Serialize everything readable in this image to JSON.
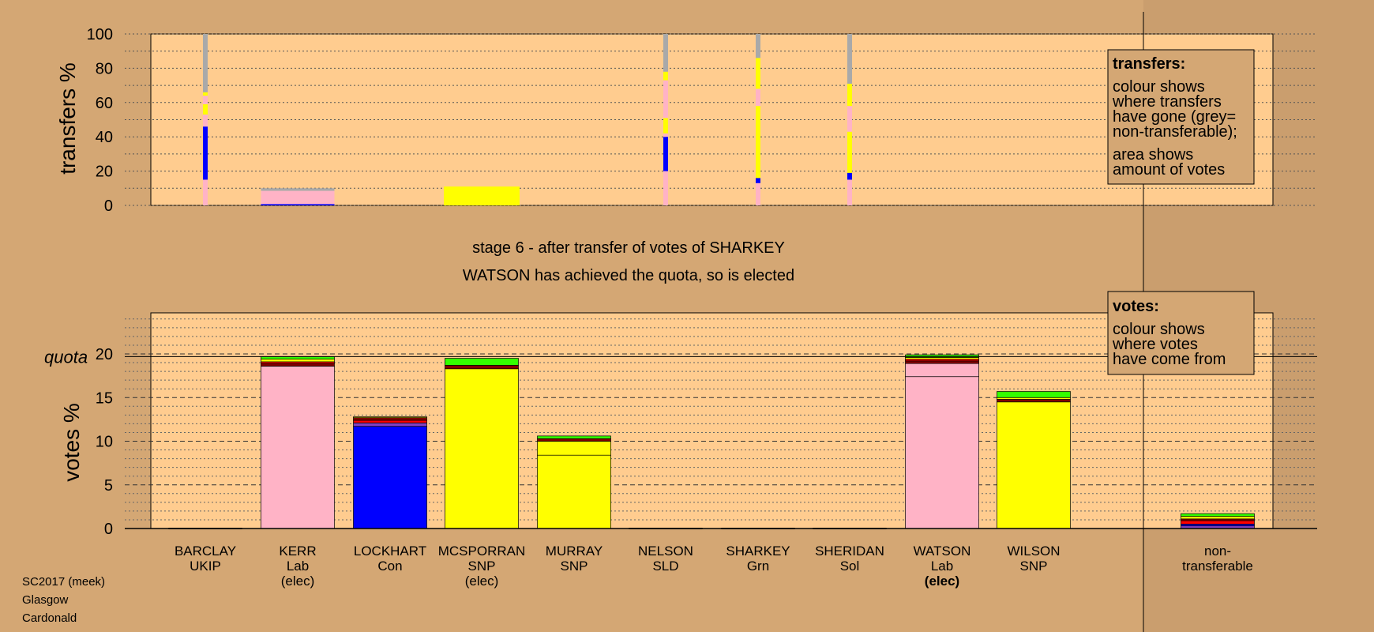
{
  "colors": {
    "background": "#d4a774",
    "plot_bg": "#ffcc8f",
    "shade": "#b89065",
    "pink": "#ffb3c6",
    "blue": "#0000ff",
    "yellow": "#ffff00",
    "green": "#33ff00",
    "red": "#ff0000",
    "maroon": "#800000",
    "purple": "#8040c0",
    "grey": "#a9a9a9"
  },
  "stage_title": "stage 6 - after transfer of votes of SHARKEY",
  "status_line": "WATSON has achieved the quota, so is elected",
  "footer": [
    "SC2017 (meek)",
    "Glasgow",
    "Cardonald"
  ],
  "legend_transfers": {
    "heading": "transfers:",
    "lines": [
      "colour shows",
      "where transfers",
      "have gone (grey=",
      "non-transferable);",
      "area shows",
      "amount of votes"
    ]
  },
  "legend_votes": {
    "heading": "votes:",
    "lines": [
      "colour shows",
      "where votes",
      "have come from"
    ]
  },
  "chart_data": [
    {
      "type": "bar",
      "ylabel": "transfers %",
      "ylim": [
        0,
        100
      ],
      "yticks": [
        "0",
        "20",
        "40",
        "60",
        "80",
        "100"
      ],
      "transfers": [
        {
          "column": "BARCLAY",
          "segments": [
            {
              "color": "pink",
              "from": 0,
              "to": 15
            },
            {
              "color": "blue",
              "from": 15,
              "to": 46
            },
            {
              "color": "pink",
              "from": 46,
              "to": 53
            },
            {
              "color": "yellow",
              "from": 53,
              "to": 59
            },
            {
              "color": "pink",
              "from": 59,
              "to": 64
            },
            {
              "color": "yellow",
              "from": 64,
              "to": 66
            },
            {
              "color": "grey",
              "from": 66,
              "to": 100
            }
          ]
        },
        {
          "column": "KERR",
          "segments": [
            {
              "color": "blue",
              "from": 0,
              "to": 0.8
            },
            {
              "color": "pink",
              "from": 0.8,
              "to": 8.5
            },
            {
              "color": "grey",
              "from": 8.5,
              "to": 10
            }
          ]
        },
        {
          "column": "MCSPORRAN",
          "segments": [
            {
              "color": "yellow",
              "from": 0,
              "to": 11
            }
          ]
        },
        {
          "column": "NELSON",
          "segments": [
            {
              "color": "pink",
              "from": 0,
              "to": 20
            },
            {
              "color": "blue",
              "from": 20,
              "to": 40
            },
            {
              "color": "pink",
              "from": 40,
              "to": 42
            },
            {
              "color": "yellow",
              "from": 42,
              "to": 51
            },
            {
              "color": "pink",
              "from": 51,
              "to": 73
            },
            {
              "color": "yellow",
              "from": 73,
              "to": 78
            },
            {
              "color": "grey",
              "from": 78,
              "to": 100
            }
          ]
        },
        {
          "column": "SHARKEY",
          "segments": [
            {
              "color": "pink",
              "from": 0,
              "to": 13
            },
            {
              "color": "blue",
              "from": 13,
              "to": 16
            },
            {
              "color": "yellow",
              "from": 16,
              "to": 58
            },
            {
              "color": "pink",
              "from": 58,
              "to": 68
            },
            {
              "color": "yellow",
              "from": 68,
              "to": 86
            },
            {
              "color": "grey",
              "from": 86,
              "to": 100
            }
          ]
        },
        {
          "column": "SHERIDAN",
          "segments": [
            {
              "color": "pink",
              "from": 0,
              "to": 15
            },
            {
              "color": "blue",
              "from": 15,
              "to": 19
            },
            {
              "color": "yellow",
              "from": 19,
              "to": 43
            },
            {
              "color": "pink",
              "from": 43,
              "to": 58
            },
            {
              "color": "yellow",
              "from": 58,
              "to": 71
            },
            {
              "color": "grey",
              "from": 71,
              "to": 100
            }
          ]
        }
      ]
    },
    {
      "type": "bar",
      "ylabel": "votes %",
      "ylim": [
        0,
        25
      ],
      "yticks": [
        "0",
        "5",
        "10",
        "15",
        "20"
      ],
      "quota_label": "quota",
      "quota": 19.7,
      "categories": [
        {
          "name": "BARCLAY",
          "party": "UKIP",
          "status": ""
        },
        {
          "name": "KERR",
          "party": "Lab",
          "status": "(elec)"
        },
        {
          "name": "LOCKHART",
          "party": "Con",
          "status": ""
        },
        {
          "name": "MCSPORRAN",
          "party": "SNP",
          "status": "(elec)"
        },
        {
          "name": "MURRAY",
          "party": "SNP",
          "status": ""
        },
        {
          "name": "NELSON",
          "party": "SLD",
          "status": ""
        },
        {
          "name": "SHARKEY",
          "party": "Grn",
          "status": ""
        },
        {
          "name": "SHERIDAN",
          "party": "Sol",
          "status": ""
        },
        {
          "name": "WATSON",
          "party": "Lab",
          "status": "(elec)"
        },
        {
          "name": "WILSON",
          "party": "SNP",
          "status": ""
        }
      ],
      "nontransferable_label": [
        "non-",
        "transferable"
      ],
      "votes": [
        {
          "column": "BARCLAY",
          "segments": []
        },
        {
          "column": "KERR",
          "segments": [
            {
              "color": "pink",
              "value": 18.6
            },
            {
              "color": "maroon",
              "value": 0.3
            },
            {
              "color": "red",
              "value": 0.2
            },
            {
              "color": "yellow",
              "value": 0.3
            },
            {
              "color": "green",
              "value": 0.3
            }
          ]
        },
        {
          "column": "LOCKHART",
          "segments": [
            {
              "color": "blue",
              "value": 11.7
            },
            {
              "color": "purple",
              "value": 0.4
            },
            {
              "color": "red",
              "value": 0.3
            },
            {
              "color": "maroon",
              "value": 0.3
            },
            {
              "color": "yellow",
              "value": 0.1
            }
          ]
        },
        {
          "column": "MCSPORRAN",
          "segments": [
            {
              "color": "yellow",
              "value": 18.3
            },
            {
              "color": "maroon",
              "value": 0.4
            },
            {
              "color": "green",
              "value": 0.8
            }
          ]
        },
        {
          "column": "MURRAY",
          "segments": [
            {
              "color": "yellow",
              "value": 8.4
            },
            {
              "color": "yellow",
              "value": 1.6
            },
            {
              "color": "maroon",
              "value": 0.3
            },
            {
              "color": "green",
              "value": 0.3
            }
          ]
        },
        {
          "column": "NELSON",
          "segments": []
        },
        {
          "column": "SHARKEY",
          "segments": []
        },
        {
          "column": "SHERIDAN",
          "segments": []
        },
        {
          "column": "WATSON",
          "segments": [
            {
              "color": "pink",
              "value": 17.4
            },
            {
              "color": "pink",
              "value": 1.5
            },
            {
              "color": "maroon",
              "value": 0.3
            },
            {
              "color": "red",
              "value": 0.2
            },
            {
              "color": "yellow",
              "value": 0.2
            },
            {
              "color": "green",
              "value": 0.3
            }
          ]
        },
        {
          "column": "WILSON",
          "segments": [
            {
              "color": "yellow",
              "value": 14.5
            },
            {
              "color": "maroon",
              "value": 0.3
            },
            {
              "color": "yellow",
              "value": 0.2
            },
            {
              "color": "green",
              "value": 0.7
            }
          ]
        },
        {
          "column": "non-transferable",
          "segments": [
            {
              "color": "purple",
              "value": 0.3
            },
            {
              "color": "blue",
              "value": 0.2
            },
            {
              "color": "red",
              "value": 0.4
            },
            {
              "color": "maroon",
              "value": 0.2
            },
            {
              "color": "yellow",
              "value": 0.3
            },
            {
              "color": "green",
              "value": 0.3
            }
          ]
        }
      ]
    }
  ]
}
